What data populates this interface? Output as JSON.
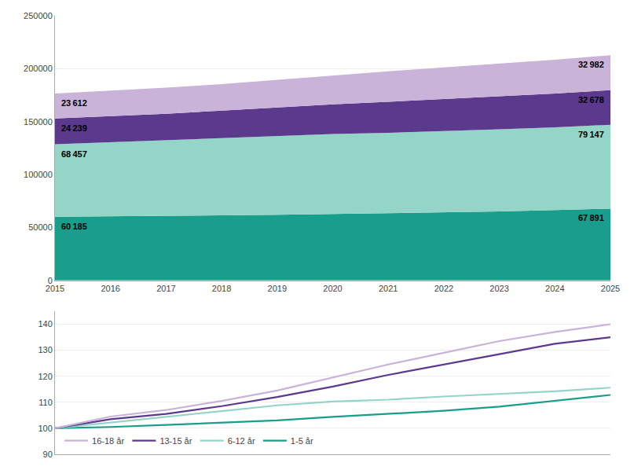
{
  "chart_data": [
    {
      "type": "area",
      "stacked": true,
      "x": [
        2015,
        2016,
        2017,
        2018,
        2019,
        2020,
        2021,
        2022,
        2023,
        2024,
        2025
      ],
      "series": [
        {
          "name": "1-5 år",
          "color": "#1a9e8c",
          "values": [
            60185,
            60500,
            61000,
            61500,
            62000,
            62800,
            63500,
            64200,
            65200,
            66500,
            67891
          ],
          "value_labels": [
            "60 185",
            null,
            null,
            null,
            null,
            null,
            null,
            null,
            null,
            null,
            "67 891"
          ]
        },
        {
          "name": "6-12 år",
          "color": "#95d5c8",
          "values": [
            68457,
            70000,
            71500,
            73000,
            74500,
            75500,
            76000,
            76800,
            77500,
            78200,
            79147
          ],
          "value_labels": [
            "68 457",
            null,
            null,
            null,
            null,
            null,
            null,
            null,
            null,
            null,
            "79 147"
          ]
        },
        {
          "name": "13-15 år",
          "color": "#5b3a8e",
          "values": [
            24239,
            24500,
            25000,
            25800,
            26800,
            28000,
            29200,
            30200,
            31000,
            31800,
            32678
          ],
          "value_labels": [
            "24 239",
            null,
            null,
            null,
            null,
            null,
            null,
            null,
            null,
            null,
            "32 678"
          ]
        },
        {
          "name": "16-18 år",
          "color": "#c9b3d9",
          "values": [
            23612,
            24000,
            24500,
            25200,
            26200,
            27500,
            28800,
            30000,
            31000,
            32000,
            32982
          ],
          "value_labels": [
            "23 612",
            null,
            null,
            null,
            null,
            null,
            null,
            null,
            null,
            null,
            "32 982"
          ]
        }
      ],
      "xlim": [
        2015,
        2025
      ],
      "xticks": [
        2015,
        2016,
        2017,
        2018,
        2019,
        2020,
        2021,
        2022,
        2023,
        2024,
        2025
      ],
      "ylim": [
        0,
        250000
      ],
      "yticks": [
        0,
        50000,
        100000,
        150000,
        200000,
        250000
      ],
      "grid": "y",
      "data_labels": true
    },
    {
      "type": "line",
      "x": [
        2015,
        2016,
        2017,
        2018,
        2019,
        2020,
        2021,
        2022,
        2023,
        2024,
        2025
      ],
      "series": [
        {
          "name": "1-5 år",
          "color": "#1a9e8c",
          "values": [
            100,
            100.5,
            101.3,
            102.2,
            103.0,
            104.4,
            105.5,
            106.7,
            108.3,
            110.5,
            112.8
          ]
        },
        {
          "name": "6-12 år",
          "color": "#95d5c8",
          "values": [
            100,
            102.3,
            104.4,
            106.6,
            108.8,
            110.3,
            111.0,
            112.2,
            113.2,
            114.2,
            115.6
          ]
        },
        {
          "name": "13-15 år",
          "color": "#5b3a8e",
          "values": [
            100,
            103.5,
            105.5,
            108.5,
            112.0,
            116.0,
            120.5,
            124.6,
            128.5,
            132.5,
            135.0
          ]
        },
        {
          "name": "16-18 år",
          "color": "#c9b3d9",
          "values": [
            100,
            104.5,
            107.0,
            110.5,
            114.5,
            119.5,
            124.5,
            129.0,
            133.5,
            137.0,
            140.0
          ]
        }
      ],
      "xlim": [
        2015,
        2025
      ],
      "xticks": [
        2015,
        2016,
        2017,
        2018,
        2019,
        2020,
        2021,
        2022,
        2023,
        2024,
        2025
      ],
      "ylim": [
        90,
        145
      ],
      "yticks": [
        90,
        100,
        110,
        120,
        130,
        140
      ],
      "grid": "y",
      "legend": "lower left",
      "tick_labels": "y"
    }
  ]
}
